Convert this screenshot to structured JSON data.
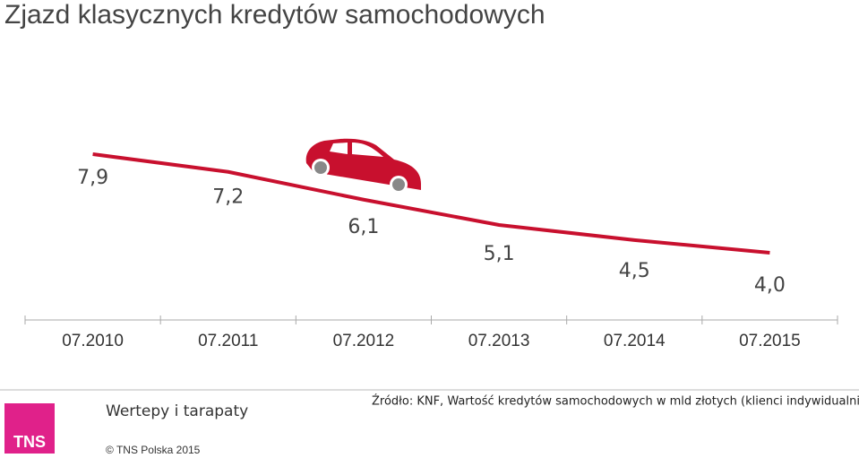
{
  "chart_data": {
    "type": "line",
    "title": "Zjazd klasycznych kredytów samochodowych",
    "categories": [
      "07.2010",
      "07.2011",
      "07.2012",
      "07.2013",
      "07.2014",
      "07.2015"
    ],
    "values": [
      7.9,
      7.2,
      6.1,
      5.1,
      4.5,
      4.0
    ],
    "value_labels": [
      "7,9",
      "7,2",
      "6,1",
      "5,1",
      "4,5",
      "4,0"
    ],
    "color": "#c8102e"
  },
  "footer": {
    "section": "Wertepy i tarapaty",
    "source": "Źródło: KNF, Wartość kredytów samochodowych w mld złotych (klienci indywidualni)",
    "copyright": "© TNS Polska 2015",
    "logo": "TNS"
  }
}
